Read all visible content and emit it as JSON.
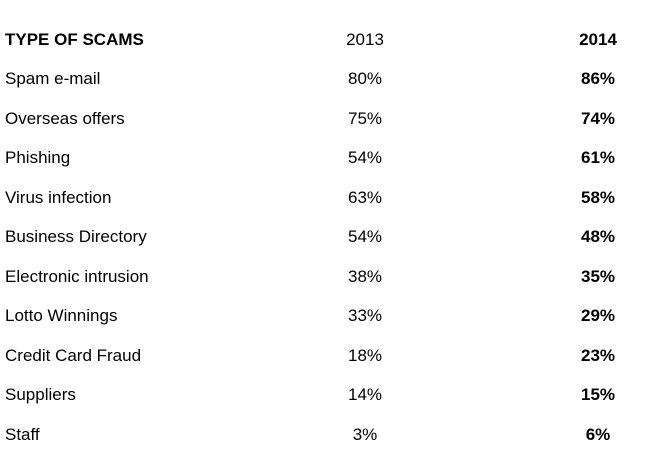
{
  "table": {
    "header": [
      "TYPE OF SCAMS",
      "2013",
      "2014"
    ],
    "rows": [
      [
        "Spam e-mail",
        "80%",
        "86%"
      ],
      [
        "Overseas offers",
        "75%",
        "74%"
      ],
      [
        "Phishing",
        "54%",
        "61%"
      ],
      [
        "Virus infection",
        "63%",
        "58%"
      ],
      [
        "Business Directory",
        "54%",
        "48%"
      ],
      [
        "Electronic intrusion",
        "38%",
        "35%"
      ],
      [
        "Lotto Winnings",
        "33%",
        "29%"
      ],
      [
        "Credit Card Fraud",
        "18%",
        "23%"
      ],
      [
        "Suppliers",
        "14%",
        "15%"
      ],
      [
        "Staff",
        "3%",
        "6%"
      ]
    ]
  }
}
